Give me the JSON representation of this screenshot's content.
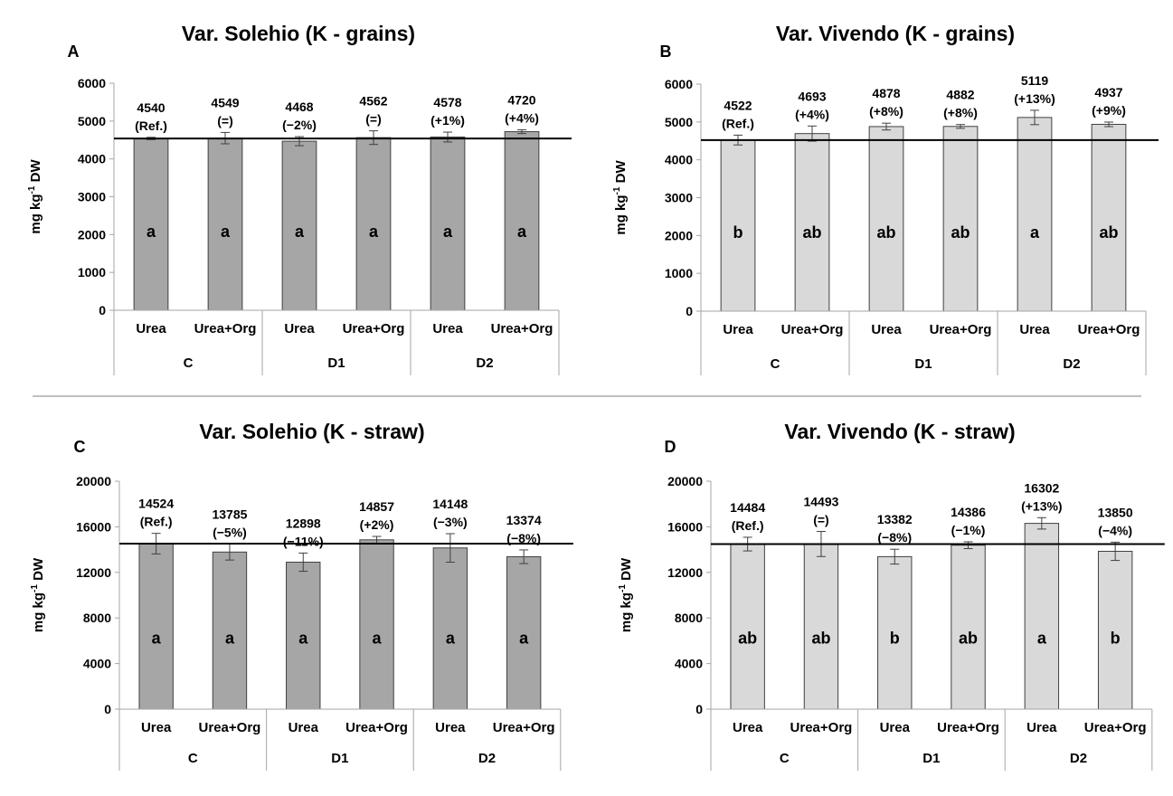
{
  "figure": {
    "divider": true
  },
  "chart_data": [
    {
      "id": "A",
      "panel_letter": "A",
      "type": "bar",
      "title": "Var. Solehio (K - grains)",
      "ylabel_main": "mg kg",
      "ylabel_sup": "-1",
      "ylabel_tail": " DW",
      "ylim": [
        0,
        6000
      ],
      "yticks": [
        0,
        1000,
        2000,
        3000,
        4000,
        5000,
        6000
      ],
      "categories": [
        "Urea",
        "Urea+Org",
        "Urea",
        "Urea+Org",
        "Urea",
        "Urea+Org"
      ],
      "groups": [
        "C",
        "D1",
        "D2"
      ],
      "values": [
        4540,
        4549,
        4468,
        4562,
        4578,
        4720
      ],
      "errors": [
        30,
        150,
        120,
        180,
        130,
        50
      ],
      "value_labels": [
        "4540",
        "4549",
        "4468",
        "4562",
        "4578",
        "4720"
      ],
      "pct_labels": [
        "(Ref.)",
        "(=)",
        "(−2%)",
        "(=)",
        "(+1%)",
        "(+4%)"
      ],
      "letters": [
        "a",
        "a",
        "a",
        "a",
        "a",
        "a"
      ],
      "reference": 4540,
      "letter_y": 2100,
      "bar_color": "#a6a6a6"
    },
    {
      "id": "B",
      "panel_letter": "B",
      "type": "bar",
      "title": "Var. Vivendo (K - grains)",
      "ylabel_main": "mg kg",
      "ylabel_sup": "-1",
      "ylabel_tail": " DW",
      "ylim": [
        0,
        6000
      ],
      "yticks": [
        0,
        1000,
        2000,
        3000,
        4000,
        5000,
        6000
      ],
      "categories": [
        "Urea",
        "Urea+Org",
        "Urea",
        "Urea+Org",
        "Urea",
        "Urea+Org"
      ],
      "groups": [
        "C",
        "D1",
        "D2"
      ],
      "values": [
        4522,
        4693,
        4878,
        4882,
        5119,
        4937
      ],
      "errors": [
        130,
        200,
        90,
        50,
        190,
        60
      ],
      "value_labels": [
        "4522",
        "4693",
        "4878",
        "4882",
        "5119",
        "4937"
      ],
      "pct_labels": [
        "(Ref.)",
        "(+4%)",
        "(+8%)",
        "(+8%)",
        "(+13%)",
        "(+9%)"
      ],
      "letters": [
        "b",
        "ab",
        "ab",
        "ab",
        "a",
        "ab"
      ],
      "reference": 4522,
      "letter_y": 2100,
      "bar_color": "#d9d9d9"
    },
    {
      "id": "C",
      "panel_letter": "C",
      "type": "bar",
      "title": "Var. Solehio (K - straw)",
      "ylabel_main": "mg kg",
      "ylabel_sup": "-1",
      "ylabel_tail": " DW",
      "ylim": [
        0,
        20000
      ],
      "yticks": [
        0,
        4000,
        8000,
        12000,
        16000,
        20000
      ],
      "categories": [
        "Urea",
        "Urea+Org",
        "Urea",
        "Urea+Org",
        "Urea",
        "Urea+Org"
      ],
      "groups": [
        "C",
        "D1",
        "D2"
      ],
      "values": [
        14524,
        13785,
        12898,
        14857,
        14148,
        13374
      ],
      "errors": [
        900,
        700,
        800,
        300,
        1250,
        600
      ],
      "value_labels": [
        "14524",
        "13785",
        "12898",
        "14857",
        "14148",
        "13374"
      ],
      "pct_labels": [
        "(Ref.)",
        "(−5%)",
        "(−11%)",
        "(+2%)",
        "(−3%)",
        "(−8%)"
      ],
      "letters": [
        "a",
        "a",
        "a",
        "a",
        "a",
        "a"
      ],
      "reference": 14524,
      "letter_y": 6300,
      "bar_color": "#a6a6a6"
    },
    {
      "id": "D",
      "panel_letter": "D",
      "type": "bar",
      "title": "Var. Vivendo (K - straw)",
      "ylabel_main": "mg kg",
      "ylabel_sup": "-1",
      "ylabel_tail": " DW",
      "ylim": [
        0,
        20000
      ],
      "yticks": [
        0,
        4000,
        8000,
        12000,
        16000,
        20000
      ],
      "categories": [
        "Urea",
        "Urea+Org",
        "Urea",
        "Urea+Org",
        "Urea",
        "Urea+Org"
      ],
      "groups": [
        "C",
        "D1",
        "D2"
      ],
      "values": [
        14484,
        14493,
        13382,
        14386,
        16302,
        13850
      ],
      "errors": [
        600,
        1100,
        650,
        300,
        500,
        800
      ],
      "value_labels": [
        "14484",
        "14493",
        "13382",
        "14386",
        "16302",
        "13850"
      ],
      "pct_labels": [
        "(Ref.)",
        "(=)",
        "(−8%)",
        "(−1%)",
        "(+13%)",
        "(−4%)"
      ],
      "letters": [
        "ab",
        "ab",
        "b",
        "ab",
        "a",
        "b"
      ],
      "reference": 14484,
      "letter_y": 6300,
      "bar_color": "#d9d9d9"
    }
  ]
}
